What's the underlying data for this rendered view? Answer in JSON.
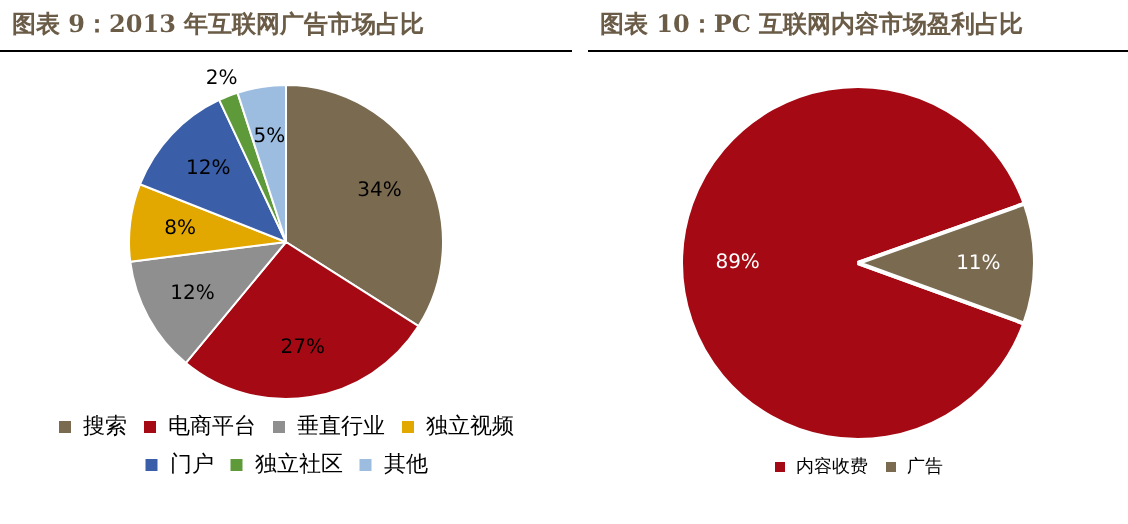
{
  "chart_data": [
    {
      "type": "pie",
      "title": "图表 9：2013 年互联网广告市场占比",
      "categories": [
        "搜索",
        "电商平台",
        "垂直行业",
        "独立视频",
        "门户",
        "独立社区",
        "其他"
      ],
      "values": [
        34,
        27,
        12,
        8,
        12,
        2,
        5
      ],
      "value_labels": [
        "34%",
        "27%",
        "12%",
        "8%",
        "12%",
        "2%",
        "5%"
      ],
      "colors": [
        "#7a6a50",
        "#a50a14",
        "#8f8f8f",
        "#e3a800",
        "#3a5fa8",
        "#5f9a3a",
        "#9cbde0"
      ],
      "legend": "bottom"
    },
    {
      "type": "pie",
      "title": "图表 10：PC 互联网内容市场盈利占比",
      "categories": [
        "内容收费",
        "广告"
      ],
      "values": [
        89,
        11
      ],
      "value_labels": [
        "89%",
        "11%"
      ],
      "colors": [
        "#a50a14",
        "#7a6a50"
      ],
      "legend": "bottom"
    }
  ]
}
